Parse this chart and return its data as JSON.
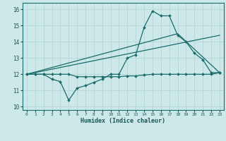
{
  "bg_color": "#cce8e8",
  "grid_color": "#b8d8d8",
  "line_color": "#1a6b6b",
  "xlabel": "Humidex (Indice chaleur)",
  "xlim": [
    -0.5,
    23.5
  ],
  "ylim": [
    9.8,
    16.4
  ],
  "xticks": [
    0,
    1,
    2,
    3,
    4,
    5,
    6,
    7,
    8,
    9,
    10,
    11,
    12,
    13,
    14,
    15,
    16,
    17,
    18,
    19,
    20,
    21,
    22,
    23
  ],
  "yticks": [
    10,
    11,
    12,
    13,
    14,
    15,
    16
  ],
  "line1_x": [
    0,
    1,
    2,
    3,
    4,
    5,
    6,
    7,
    8,
    9,
    10,
    11,
    12,
    13,
    14,
    15,
    16,
    17,
    18,
    19,
    20,
    21,
    22,
    23
  ],
  "line1_y": [
    12.0,
    12.0,
    12.0,
    11.7,
    11.55,
    10.4,
    11.15,
    11.3,
    11.5,
    11.7,
    12.0,
    12.0,
    13.0,
    13.2,
    14.9,
    15.9,
    15.6,
    15.6,
    14.4,
    14.0,
    13.3,
    12.9,
    12.1,
    12.1
  ],
  "line2_x": [
    0,
    1,
    2,
    3,
    4,
    5,
    6,
    7,
    8,
    9,
    10,
    11,
    12,
    13,
    14,
    15,
    16,
    17,
    18,
    19,
    20,
    21,
    22,
    23
  ],
  "line2_y": [
    12.0,
    12.0,
    12.0,
    12.0,
    12.0,
    12.0,
    11.85,
    11.85,
    11.85,
    11.85,
    11.85,
    11.85,
    11.9,
    11.9,
    11.95,
    12.0,
    12.0,
    12.0,
    12.0,
    12.0,
    12.0,
    12.0,
    12.0,
    12.1
  ],
  "line3_x": [
    0,
    23
  ],
  "line3_y": [
    12.0,
    14.4
  ],
  "line4_x": [
    0,
    18,
    23
  ],
  "line4_y": [
    12.0,
    14.5,
    12.1
  ]
}
